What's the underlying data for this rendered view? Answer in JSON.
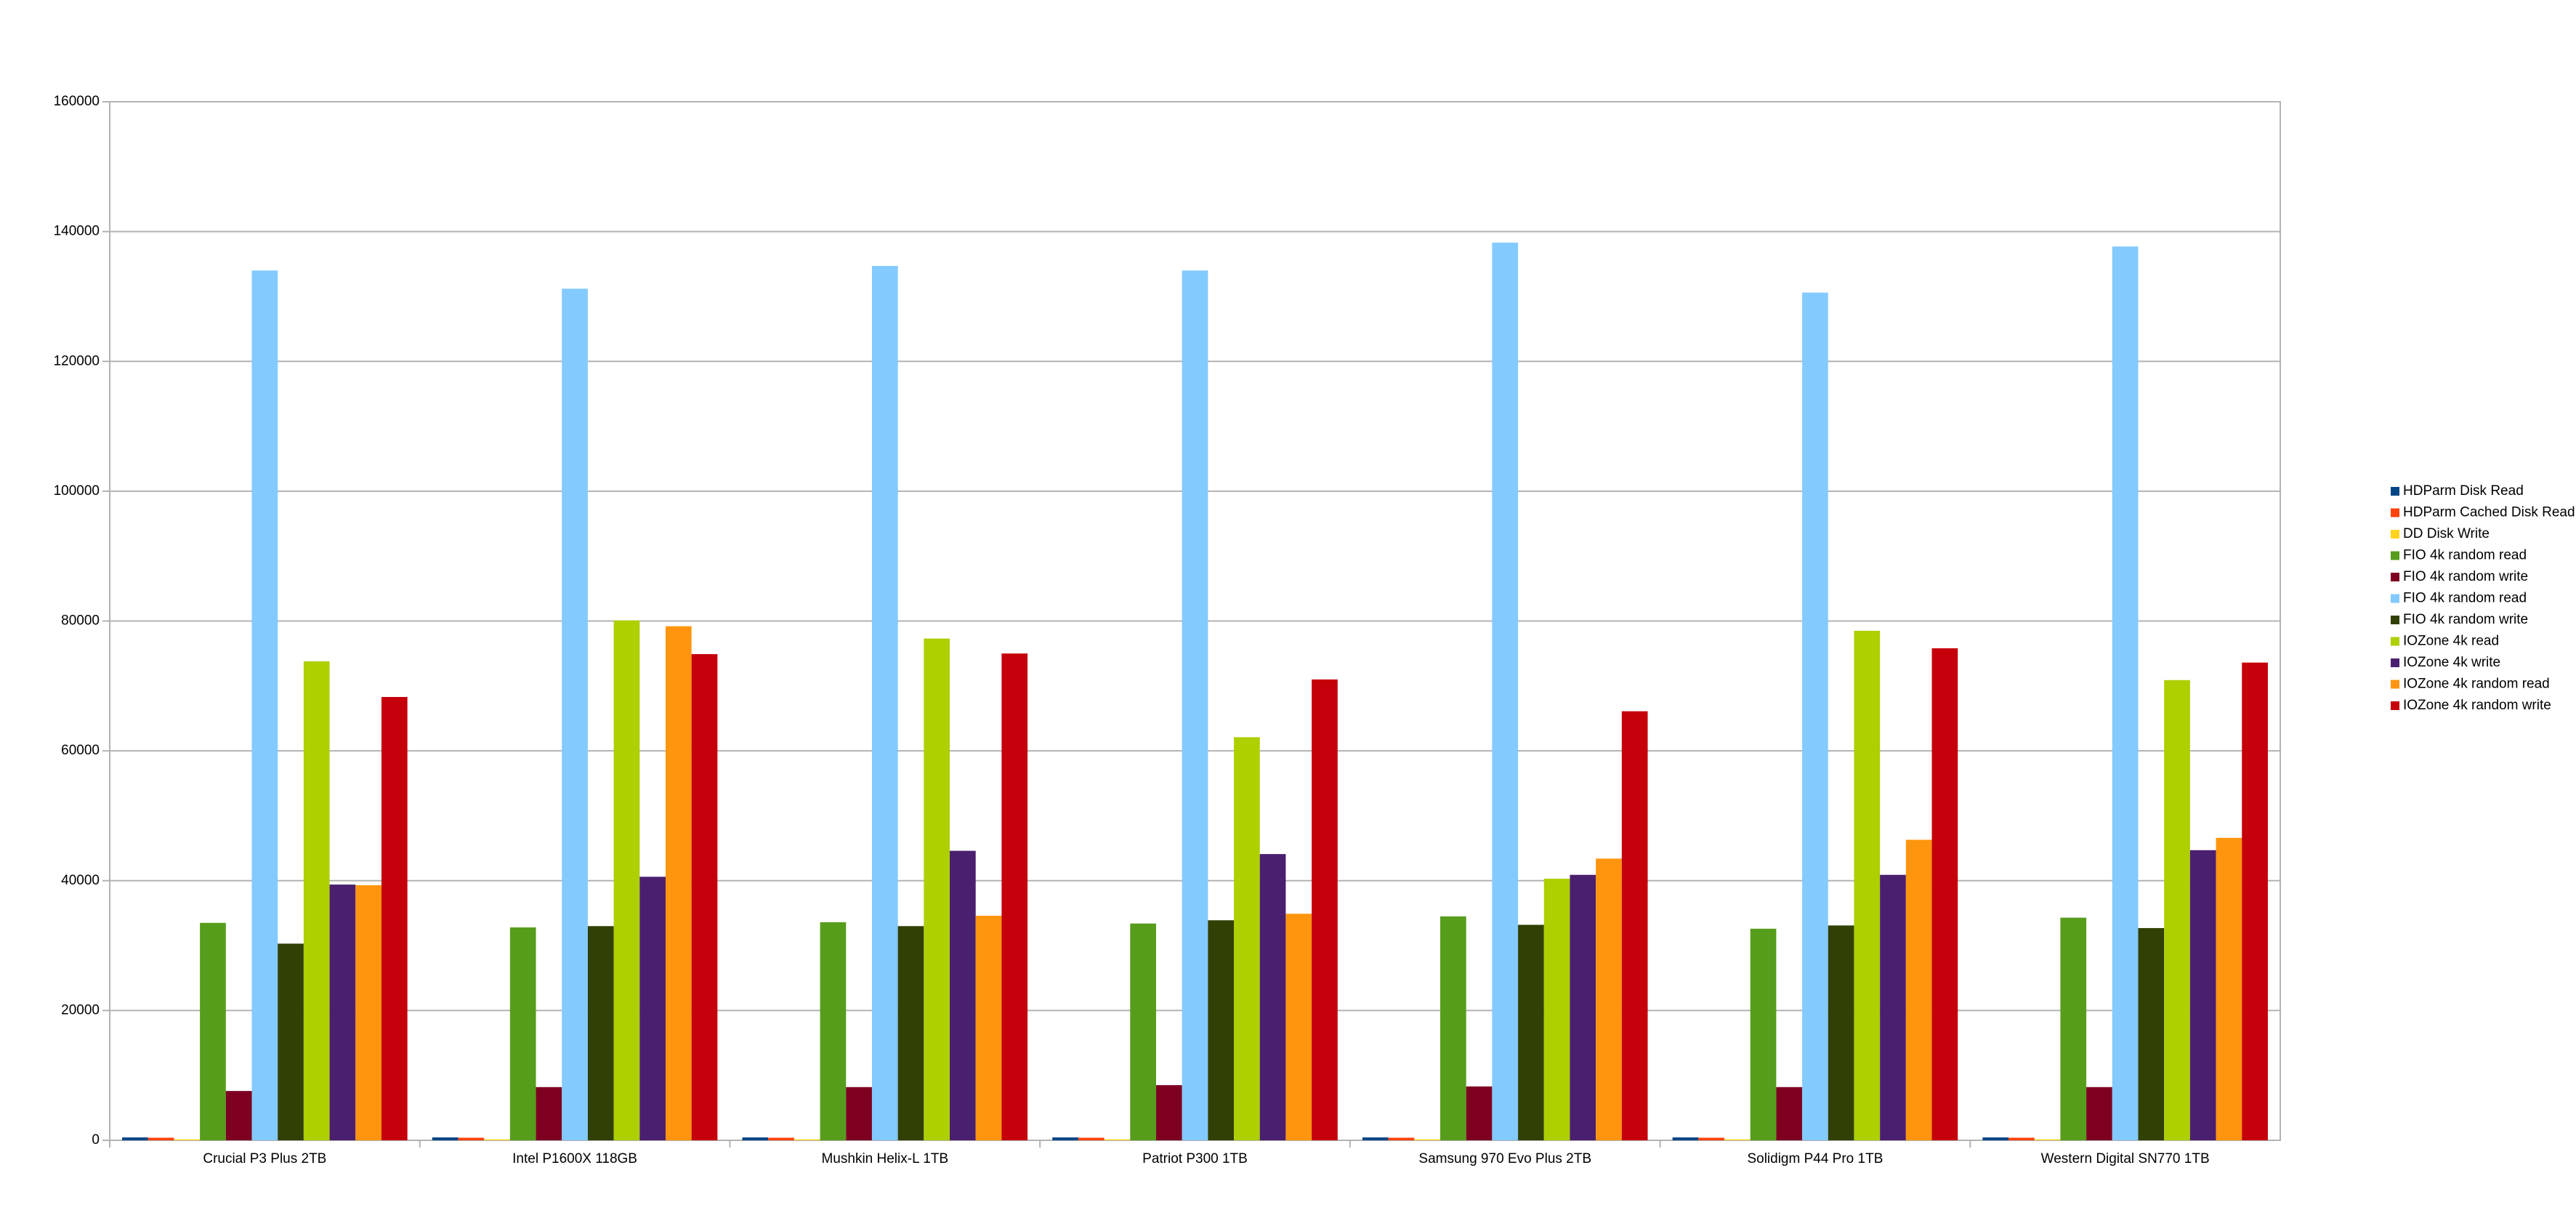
{
  "chart_data": {
    "type": "bar",
    "categories": [
      "Crucial P3 Plus 2TB",
      "Intel P1600X 118GB",
      "Mushkin Helix-L 1TB",
      "Patriot P300 1TB",
      "Samsung 970 Evo Plus 2TB",
      "Solidigm P44 Pro 1TB",
      "Western Digital SN770 1TB"
    ],
    "series": [
      {
        "name": "HDParm Disk Read",
        "color": "#004586",
        "values": [
          450,
          450,
          450,
          450,
          450,
          450,
          450
        ]
      },
      {
        "name": "HDParm Cached Disk Read",
        "color": "#ff420e",
        "values": [
          400,
          400,
          400,
          400,
          400,
          400,
          400
        ]
      },
      {
        "name": "DD Disk Write",
        "color": "#ffd320",
        "values": [
          150,
          150,
          150,
          150,
          150,
          150,
          150
        ]
      },
      {
        "name": "FIO 4k random read",
        "color": "#579d1c",
        "values": [
          33500,
          32800,
          33600,
          33400,
          34500,
          32600,
          34300
        ]
      },
      {
        "name": "FIO 4k random write",
        "color": "#7e0021",
        "values": [
          7600,
          8200,
          8200,
          8500,
          8300,
          8200,
          8200
        ]
      },
      {
        "name": "FIO 4k random read",
        "color": "#83caff",
        "values": [
          134000,
          131200,
          134700,
          134000,
          138300,
          130600,
          137700
        ]
      },
      {
        "name": "FIO 4k random write",
        "color": "#314004",
        "values": [
          30300,
          33000,
          33000,
          33900,
          33200,
          33100,
          32700
        ]
      },
      {
        "name": "IOZone 4k read",
        "color": "#aecf00",
        "values": [
          73800,
          80100,
          77300,
          62100,
          40300,
          78500,
          70900
        ]
      },
      {
        "name": "IOZone 4k write",
        "color": "#4b1f6f",
        "values": [
          39400,
          40600,
          44600,
          44100,
          40900,
          40900,
          44700
        ]
      },
      {
        "name": "IOZone 4k random read",
        "color": "#ff950e",
        "values": [
          39300,
          79200,
          34600,
          34900,
          43400,
          46300,
          46600
        ]
      },
      {
        "name": "IOZone 4k random write",
        "color": "#c5000b",
        "values": [
          68300,
          74900,
          75000,
          71000,
          66100,
          75800,
          73600
        ]
      }
    ],
    "ylim": [
      0,
      160000
    ],
    "yticks": [
      0,
      20000,
      40000,
      60000,
      80000,
      100000,
      120000,
      140000,
      160000
    ],
    "grid": true,
    "legend": "right"
  }
}
